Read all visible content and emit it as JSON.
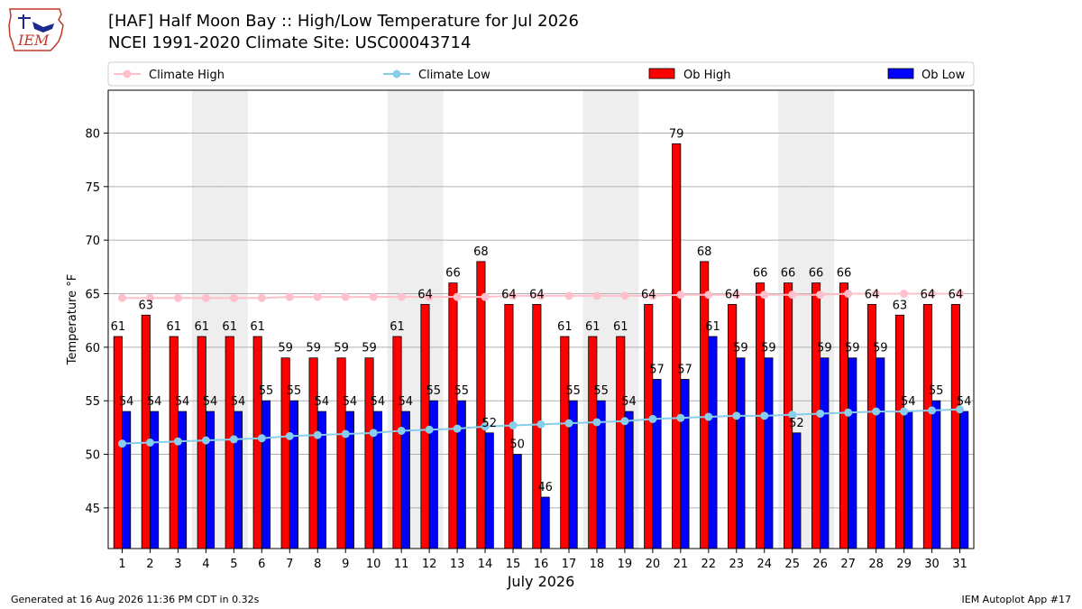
{
  "header": {
    "logo_text": "IEM",
    "title_line1": "[HAF] Half Moon Bay :: High/Low Temperature for Jul 2026",
    "title_line2": "NCEI 1991-2020 Climate Site: USC00043714"
  },
  "footer": {
    "generated": "Generated at 16 Aug 2026 11:36 PM CDT in 0.32s",
    "app": "IEM Autoplot App #17"
  },
  "colors": {
    "ob_high": "#ff0000",
    "ob_low": "#0000ff",
    "climate_high": "#ffc0cb",
    "climate_low": "#87ceeb",
    "weekend_band": "#eeeeee"
  },
  "chart_data": {
    "type": "bar",
    "xlabel": "July 2026",
    "ylabel": "Temperature °F",
    "ylim": [
      41.2,
      84
    ],
    "yticks": [
      45,
      50,
      55,
      60,
      65,
      70,
      75,
      80
    ],
    "grid": "horizontal",
    "legend_position": "top",
    "shaded_days": [
      4,
      5,
      11,
      12,
      18,
      19,
      25,
      26
    ],
    "categories": [
      1,
      2,
      3,
      4,
      5,
      6,
      7,
      8,
      9,
      10,
      11,
      12,
      13,
      14,
      15,
      16,
      17,
      18,
      19,
      20,
      21,
      22,
      23,
      24,
      25,
      26,
      27,
      28,
      29,
      30,
      31
    ],
    "series": [
      {
        "name": "Ob High",
        "type": "bar",
        "values": [
          61,
          63,
          61,
          61,
          61,
          61,
          59,
          59,
          59,
          59,
          61,
          64,
          66,
          68,
          64,
          64,
          61,
          61,
          61,
          64,
          79,
          68,
          64,
          66,
          66,
          66,
          66,
          64,
          63,
          64,
          64
        ]
      },
      {
        "name": "Ob Low",
        "type": "bar",
        "values": [
          54,
          54,
          54,
          54,
          54,
          55,
          55,
          54,
          54,
          54,
          54,
          55,
          55,
          52,
          50,
          46,
          55,
          55,
          54,
          57,
          57,
          61,
          59,
          59,
          52,
          59,
          59,
          59,
          54,
          55,
          54
        ]
      },
      {
        "name": "Climate High",
        "type": "line",
        "values": [
          64.6,
          64.6,
          64.6,
          64.6,
          64.6,
          64.6,
          64.7,
          64.7,
          64.7,
          64.7,
          64.7,
          64.7,
          64.7,
          64.7,
          64.8,
          64.8,
          64.8,
          64.8,
          64.8,
          64.8,
          64.9,
          64.9,
          64.9,
          64.9,
          64.9,
          64.9,
          65.0,
          65.0,
          65.0,
          65.0,
          65.0
        ]
      },
      {
        "name": "Climate Low",
        "type": "line",
        "values": [
          51.0,
          51.1,
          51.2,
          51.3,
          51.4,
          51.5,
          51.7,
          51.8,
          51.9,
          52.0,
          52.2,
          52.3,
          52.4,
          52.6,
          52.7,
          52.8,
          52.9,
          53.0,
          53.1,
          53.3,
          53.4,
          53.5,
          53.6,
          53.6,
          53.7,
          53.8,
          53.9,
          54.0,
          54.0,
          54.1,
          54.2
        ]
      }
    ]
  }
}
